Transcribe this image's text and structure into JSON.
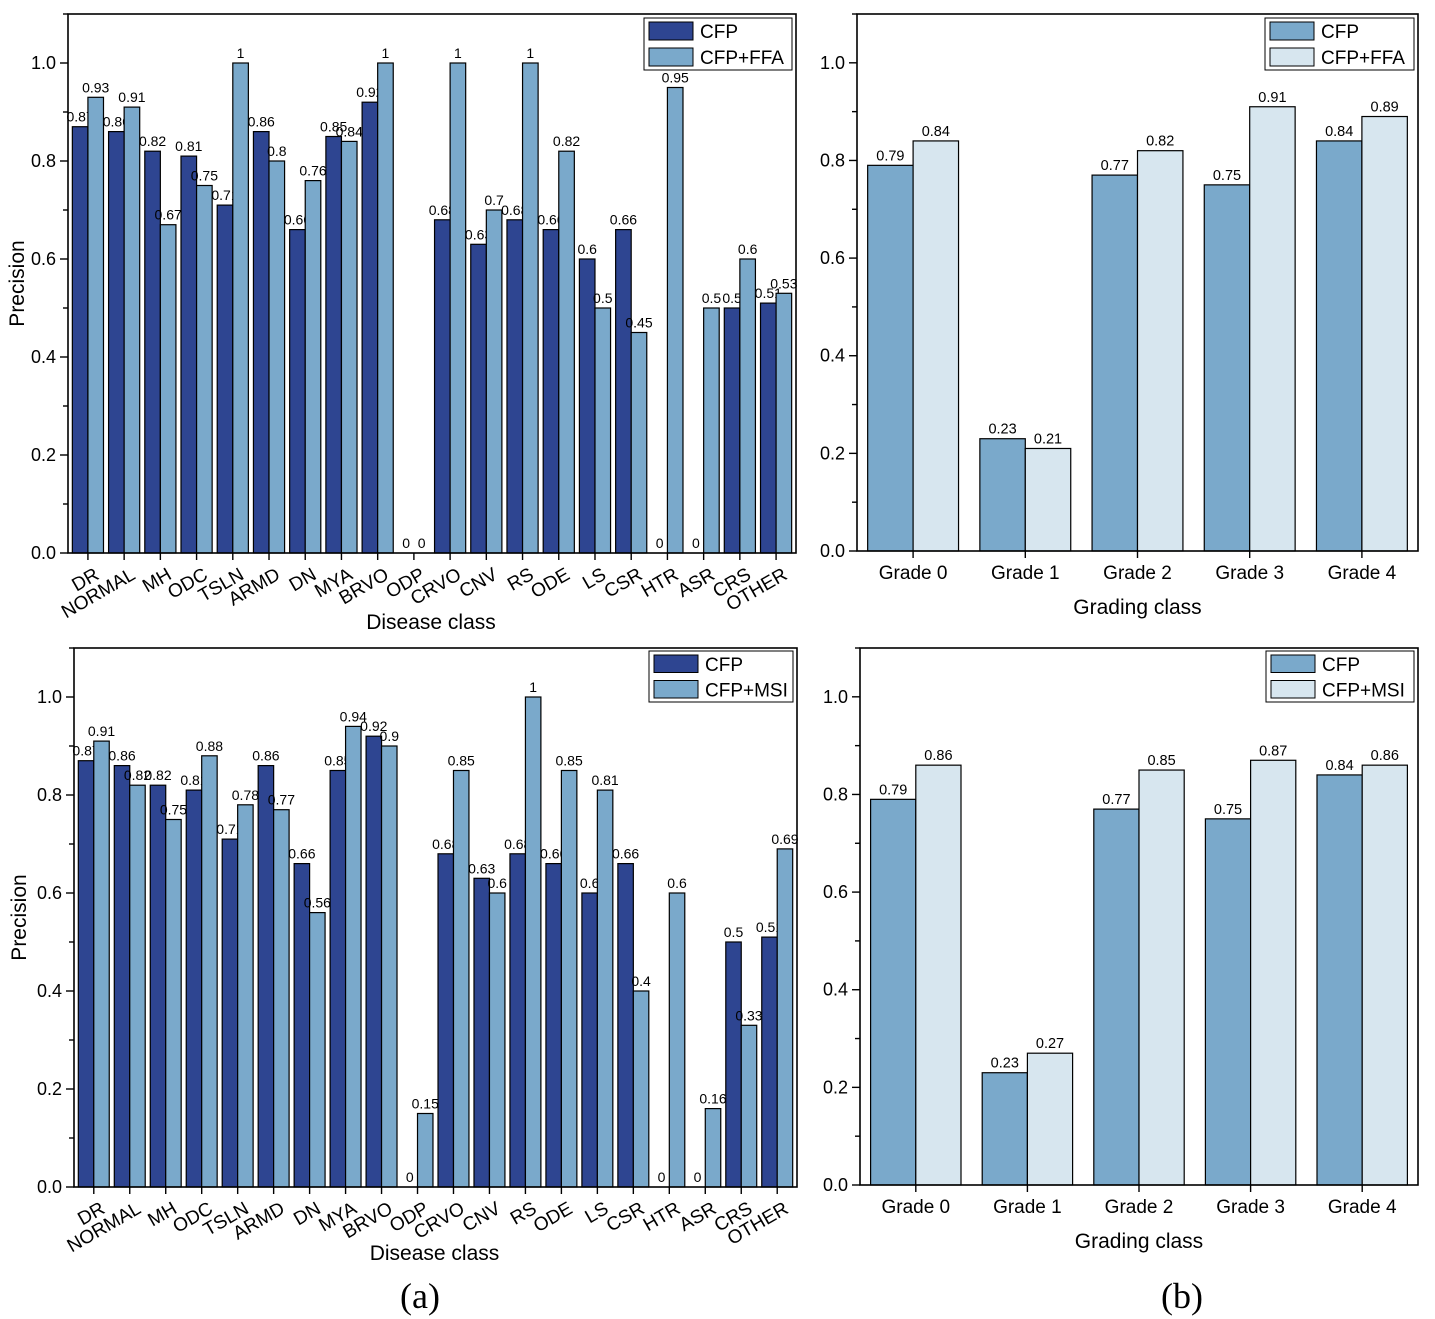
{
  "colors": {
    "cfp_dark": "#2e4591",
    "cfp_light": "#7aa9cb",
    "pale": "#d7e6ef",
    "axis": "#000000"
  },
  "panel_labels": [
    "(a)",
    "(b)"
  ],
  "chart_data": [
    {
      "type": "bar",
      "title": "",
      "xlabel": "Disease class",
      "ylabel": "Precision",
      "ylim": [
        0,
        1.1
      ],
      "yticks": [
        "0.0",
        "0.2",
        "0.4",
        "0.6",
        "0.8",
        "1.0"
      ],
      "grid": false,
      "legend_position": "top-right",
      "categories": [
        "DR",
        "NORMAL",
        "MH",
        "ODC",
        "TSLN",
        "ARMD",
        "DN",
        "MYA",
        "BRVO",
        "ODP",
        "CRVO",
        "CNV",
        "RS",
        "ODE",
        "LS",
        "CSR",
        "HTR",
        "ASR",
        "CRS",
        "OTHER"
      ],
      "series": [
        {
          "name": "CFP",
          "color": "#2e4591",
          "values": [
            0.87,
            0.86,
            0.82,
            0.81,
            0.71,
            0.86,
            0.66,
            0.85,
            0.92,
            0,
            0.68,
            0.63,
            0.68,
            0.66,
            0.6,
            0.66,
            0,
            0,
            0.5,
            0.51
          ],
          "labels": [
            "0.87",
            "0.86",
            "0.82",
            "0.81",
            "0.71",
            "0.86",
            "0.66",
            "0.85",
            "0.92",
            "0",
            "0.68",
            "0.63",
            "0.68",
            "0.66",
            "0.6",
            "0.66",
            "0",
            "0",
            "0.5",
            "0.51"
          ]
        },
        {
          "name": "CFP+FFA",
          "color": "#7aa9cb",
          "values": [
            0.93,
            0.91,
            0.67,
            0.75,
            1,
            0.8,
            0.76,
            0.84,
            1,
            0,
            1,
            0.7,
            1,
            0.82,
            0.5,
            0.45,
            0.95,
            0.5,
            0.6,
            0.53
          ],
          "labels": [
            "0.93",
            "0.91",
            "0.67",
            "0.75",
            "1",
            "0.8",
            "0.76",
            "0.84",
            "1",
            "0",
            "1",
            "0.7",
            "1",
            "0.82",
            "0.5",
            "0.45",
            "0.95",
            "0.5",
            "0.6",
            "0.53"
          ]
        }
      ]
    },
    {
      "type": "bar",
      "title": "",
      "xlabel": "Grading class",
      "ylabel": "",
      "ylim": [
        0,
        1.1
      ],
      "yticks": [
        "0.0",
        "0.2",
        "0.4",
        "0.6",
        "0.8",
        "1.0"
      ],
      "grid": false,
      "legend_position": "top-right",
      "categories": [
        "Grade 0",
        "Grade 1",
        "Grade 2",
        "Grade 3",
        "Grade 4"
      ],
      "series": [
        {
          "name": "CFP",
          "color": "#7aa9cb",
          "values": [
            0.79,
            0.23,
            0.77,
            0.75,
            0.84
          ],
          "labels": [
            "0.79",
            "0.23",
            "0.77",
            "0.75",
            "0.84"
          ]
        },
        {
          "name": "CFP+FFA",
          "color": "#d7e6ef",
          "values": [
            0.84,
            0.21,
            0.82,
            0.91,
            0.89
          ],
          "labels": [
            "0.84",
            "0.21",
            "0.82",
            "0.91",
            "0.89"
          ]
        }
      ]
    },
    {
      "type": "bar",
      "title": "",
      "xlabel": "Disease class",
      "ylabel": "Precision",
      "ylim": [
        0,
        1.1
      ],
      "yticks": [
        "0.0",
        "0.2",
        "0.4",
        "0.6",
        "0.8",
        "1.0"
      ],
      "grid": false,
      "legend_position": "top-right",
      "categories": [
        "DR",
        "NORMAL",
        "MH",
        "ODC",
        "TSLN",
        "ARMD",
        "DN",
        "MYA",
        "BRVO",
        "ODP",
        "CRVO",
        "CNV",
        "RS",
        "ODE",
        "LS",
        "CSR",
        "HTR",
        "ASR",
        "CRS",
        "OTHER"
      ],
      "series": [
        {
          "name": "CFP",
          "color": "#2e4591",
          "values": [
            0.87,
            0.86,
            0.82,
            0.81,
            0.71,
            0.86,
            0.66,
            0.85,
            0.92,
            0,
            0.68,
            0.63,
            0.68,
            0.66,
            0.6,
            0.66,
            0,
            0,
            0.5,
            0.51
          ],
          "labels": [
            "0.87",
            "0.86",
            "0.82",
            "0.81",
            "0.71",
            "0.86",
            "0.66",
            "0.85",
            "0.92",
            "0",
            "0.68",
            "0.63",
            "0.68",
            "0.66",
            "0.6",
            "0.66",
            "0",
            "0",
            "0.5",
            "0.51"
          ]
        },
        {
          "name": "CFP+MSI",
          "color": "#7aa9cb",
          "values": [
            0.91,
            0.82,
            0.75,
            0.88,
            0.78,
            0.77,
            0.56,
            0.94,
            0.9,
            0.15,
            0.85,
            0.6,
            1,
            0.85,
            0.81,
            0.4,
            0.6,
            0.16,
            0.33,
            0.69
          ],
          "labels": [
            "0.91",
            "0.82",
            "0.75",
            "0.88",
            "0.78",
            "0.77",
            "0.56",
            "0.94",
            "0.9",
            "0.15",
            "0.85",
            "0.6",
            "1",
            "0.85",
            "0.81",
            "0.4",
            "0.6",
            "0.16",
            "0.33",
            "0.69"
          ]
        }
      ]
    },
    {
      "type": "bar",
      "title": "",
      "xlabel": "Grading class",
      "ylabel": "",
      "ylim": [
        0,
        1.1
      ],
      "yticks": [
        "0.0",
        "0.2",
        "0.4",
        "0.6",
        "0.8",
        "1.0"
      ],
      "grid": false,
      "legend_position": "top-right",
      "categories": [
        "Grade 0",
        "Grade 1",
        "Grade 2",
        "Grade 3",
        "Grade 4"
      ],
      "series": [
        {
          "name": "CFP",
          "color": "#7aa9cb",
          "values": [
            0.79,
            0.23,
            0.77,
            0.75,
            0.84
          ],
          "labels": [
            "0.79",
            "0.23",
            "0.77",
            "0.75",
            "0.84"
          ]
        },
        {
          "name": "CFP+MSI",
          "color": "#d7e6ef",
          "values": [
            0.86,
            0.27,
            0.85,
            0.87,
            0.86
          ],
          "labels": [
            "0.86",
            "0.27",
            "0.85",
            "0.87",
            "0.86"
          ]
        }
      ]
    }
  ]
}
